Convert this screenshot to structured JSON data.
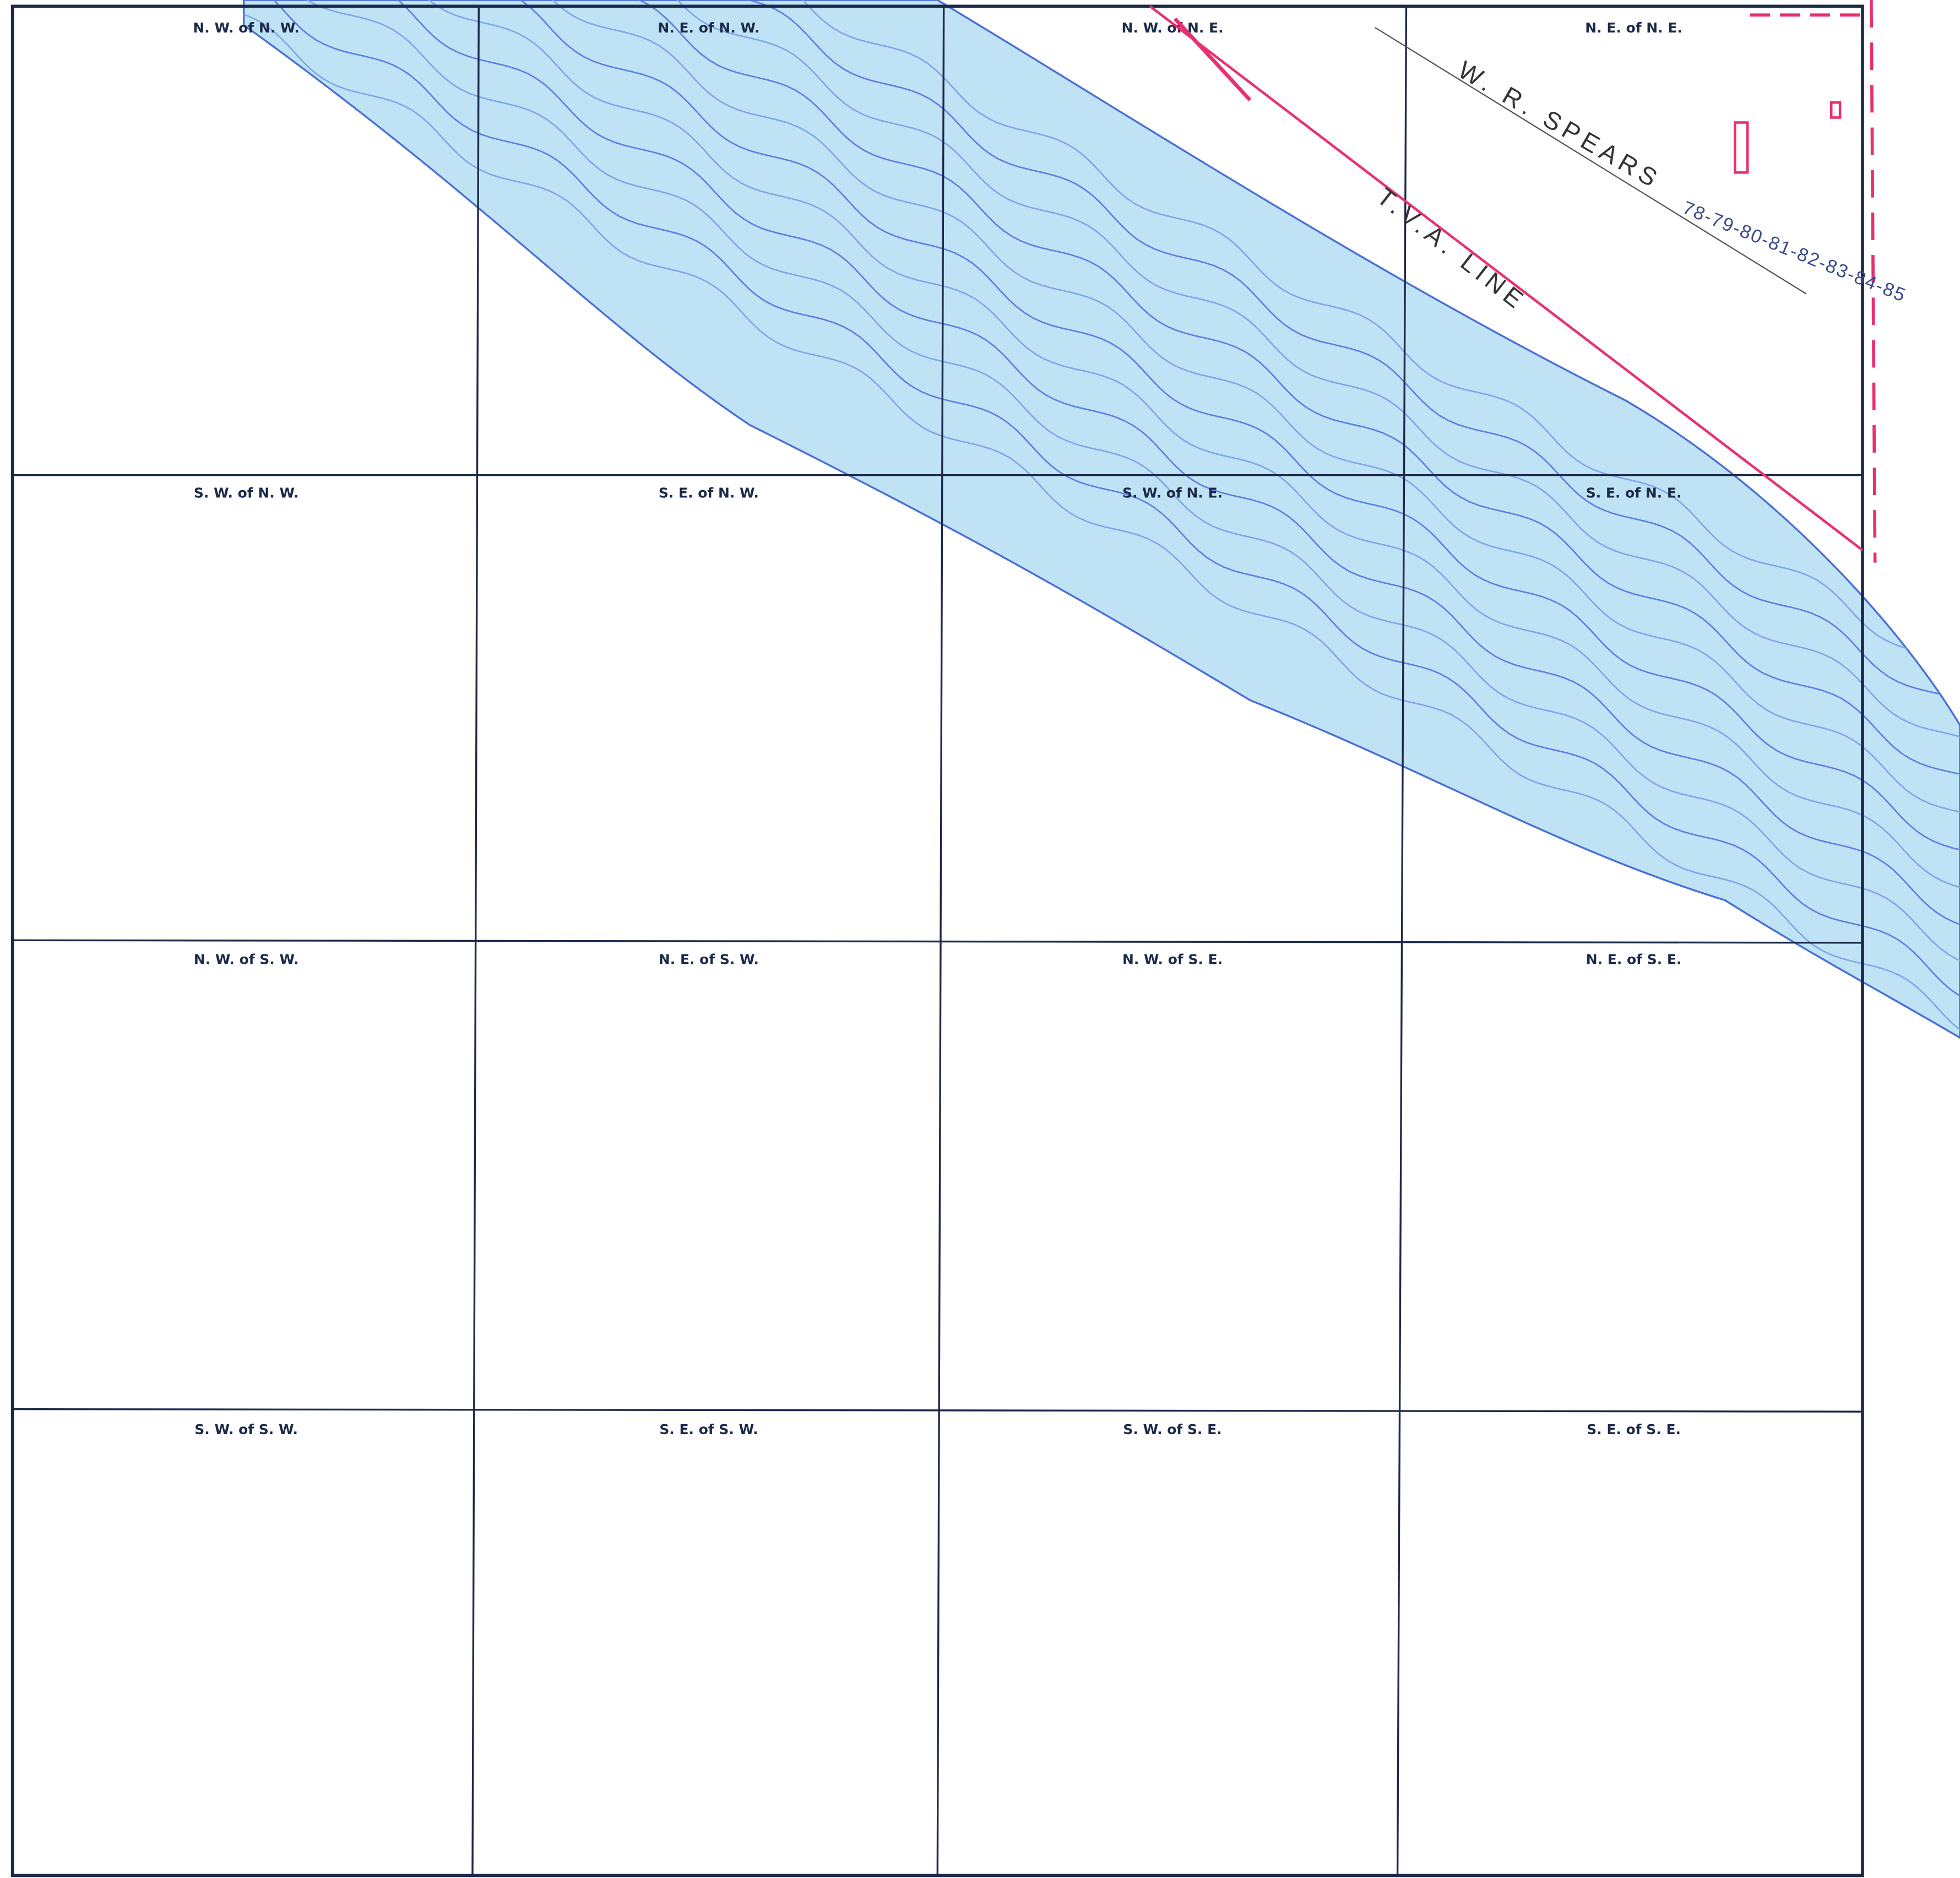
{
  "grid": {
    "rows": [
      [
        "N. W. of N. W.",
        "N. E. of N. W.",
        "N. W. of N. E.",
        "N. E. of N. E."
      ],
      [
        "S. W. of N. W.",
        "S. E. of N. W.",
        "S. W. of N. E.",
        "S. E. of N. E."
      ],
      [
        "N. W. of S. W.",
        "N. E. of S. W.",
        "N. W. of S. E.",
        "N. E. of S. E."
      ],
      [
        "S. W. of S. W.",
        "S. E. of S. W.",
        "S. W. of S. E.",
        "S. E. of S. E."
      ]
    ]
  },
  "annotations": {
    "owner": "W. R. SPEARS",
    "years": "78-79-80-81-82-83-84-85",
    "line": "T.V.A. LINE"
  }
}
